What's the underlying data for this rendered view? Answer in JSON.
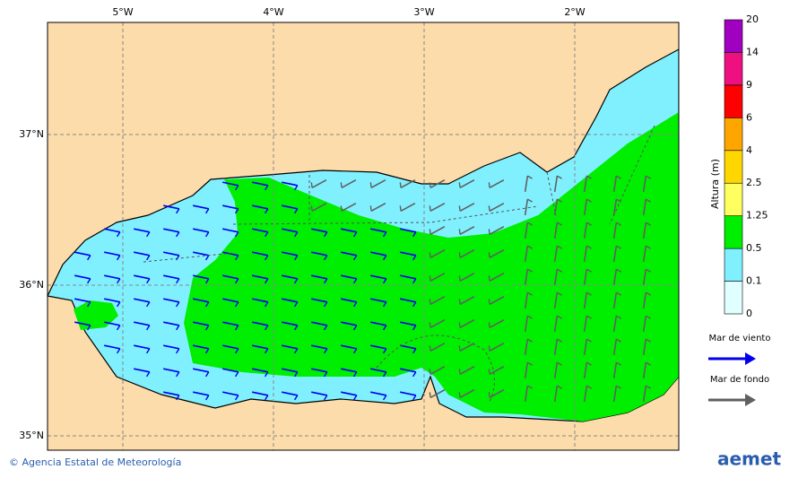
{
  "map": {
    "lon_labels": [
      "5°W",
      "4°W",
      "3°W",
      "2°W"
    ],
    "lat_labels": [
      "37°N",
      "36°N",
      "35°N"
    ],
    "land_color": "#fcdcaa",
    "wind_sea_color": "#0000ee",
    "swell_color": "#606060"
  },
  "colorbar": {
    "title": "Altura (m)",
    "labels": [
      "0",
      "0.1",
      "0.5",
      "1.25",
      "2.5",
      "4",
      "6",
      "9",
      "14",
      "20"
    ],
    "colors": [
      "#e0ffff",
      "#80f0ff",
      "#00ee00",
      "#ffff60",
      "#ffd700",
      "#ffa500",
      "#ff0000",
      "#ee1080",
      "#a000c0"
    ]
  },
  "legend": [
    {
      "label": "Mar de viento",
      "color": "#0000ee"
    },
    {
      "label": "Mar de fondo",
      "color": "#606060"
    }
  ],
  "footer": {
    "credit": "© Agencia Estatal de Meteorología",
    "logo": "aemet"
  }
}
